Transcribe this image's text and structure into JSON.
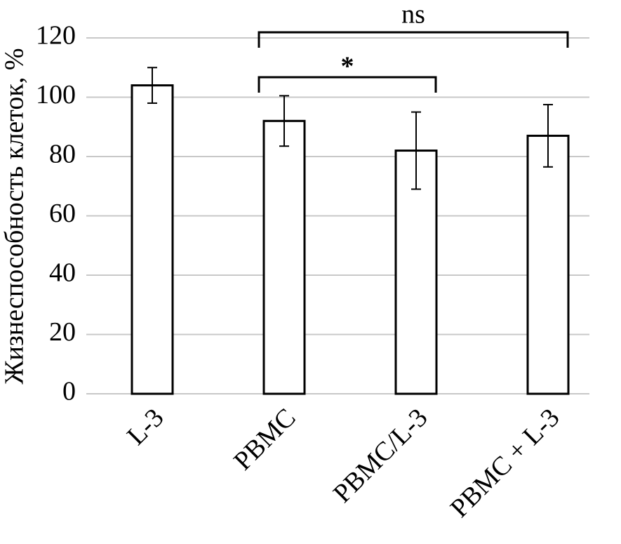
{
  "chart_data": {
    "type": "bar",
    "y_label": "Жизнеспособность клеток, %",
    "categories": [
      "L-3",
      "PBMC",
      "PBMC/L-3",
      "PBMC + L-3"
    ],
    "values": [
      104,
      92,
      82,
      87
    ],
    "errors": [
      6,
      8.5,
      13,
      10.5
    ],
    "color": "#ffffff",
    "ylim": [
      0,
      120
    ],
    "yticks": [
      0,
      20,
      40,
      60,
      80,
      100,
      120
    ],
    "grid": true,
    "annotations": [
      {
        "text": "ns"
      },
      {
        "text": "*"
      }
    ]
  }
}
